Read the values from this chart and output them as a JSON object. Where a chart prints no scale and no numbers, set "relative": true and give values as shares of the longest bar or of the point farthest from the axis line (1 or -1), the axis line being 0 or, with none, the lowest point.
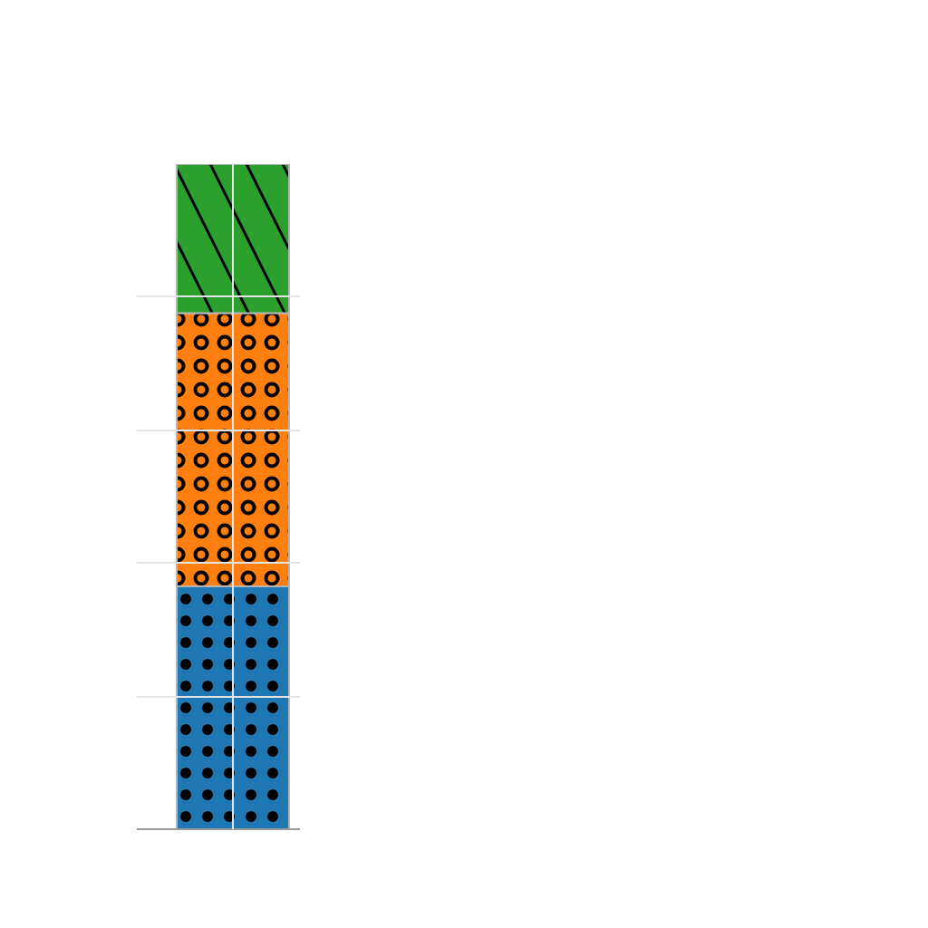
{
  "chart_data": {
    "type": "bar",
    "categories": [
      null
    ],
    "stacked": true,
    "relative": true,
    "grid": true,
    "series": [
      {
        "color": "#1f77b4",
        "values": [
          0.365
        ]
      },
      {
        "color": "#ff7f0e",
        "values": [
          0.411
        ]
      },
      {
        "color": "#2ca02c",
        "values": [
          0.224
        ]
      }
    ]
  }
}
